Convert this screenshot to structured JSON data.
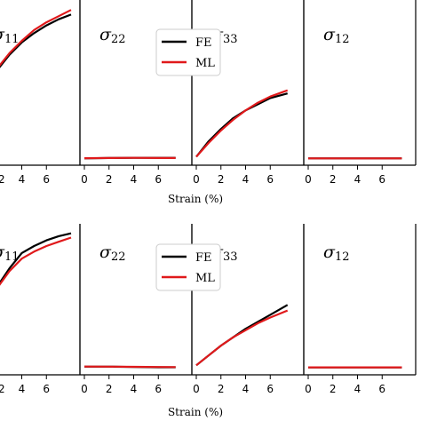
{
  "colors": {
    "fe": "#000000",
    "ml": "#e0191b",
    "axis": "#000000"
  },
  "chart_data": [
    {
      "row": "top",
      "type": "line",
      "xlabel": "Strain (%)",
      "legend": {
        "entries": [
          "FE",
          "ML"
        ],
        "placement": "upper-left of third panel"
      },
      "panels": [
        {
          "title_sym": "σ",
          "title_sub": "11",
          "xlim": [
            0,
            8
          ],
          "ylim": [
            0,
            1
          ],
          "series": [
            {
              "name": "FE",
              "x": [
                -1,
                0,
                1,
                2,
                3,
                4,
                5,
                6,
                7,
                8
              ],
              "y": [
                0.12,
                0.33,
                0.47,
                0.58,
                0.68,
                0.76,
                0.82,
                0.87,
                0.91,
                0.94
              ]
            },
            {
              "name": "ML",
              "x": [
                -1,
                0,
                1,
                2,
                3,
                4,
                5,
                6,
                7,
                8
              ],
              "y": [
                0.12,
                0.33,
                0.48,
                0.59,
                0.69,
                0.77,
                0.84,
                0.89,
                0.93,
                0.97
              ]
            }
          ]
        },
        {
          "title_sym": "σ",
          "title_sub": "22",
          "xlim": [
            0,
            8
          ],
          "ylim": [
            0,
            1
          ],
          "x_ticks": [
            "0",
            "2",
            "4",
            "6"
          ],
          "series": [
            {
              "name": "FE",
              "x": [
                0,
                2,
                4,
                6,
                7.4
              ],
              "y": [
                0.01,
                0.012,
                0.013,
                0.013,
                0.013
              ]
            },
            {
              "name": "ML",
              "x": [
                0,
                2,
                4,
                6,
                7.4
              ],
              "y": [
                0.011,
                0.012,
                0.013,
                0.012,
                0.012
              ]
            }
          ]
        },
        {
          "title_sym": "σ",
          "title_sub": "33",
          "xlim": [
            0,
            8
          ],
          "ylim": [
            0,
            1
          ],
          "x_ticks": [
            "0",
            "2",
            "4",
            "6"
          ],
          "series": [
            {
              "name": "FE",
              "x": [
                0,
                1,
                2,
                3,
                4,
                5,
                6,
                7.4
              ],
              "y": [
                0.02,
                0.12,
                0.2,
                0.27,
                0.32,
                0.36,
                0.4,
                0.43
              ]
            },
            {
              "name": "ML",
              "x": [
                0,
                1,
                2,
                3,
                4,
                5,
                6,
                7.4
              ],
              "y": [
                0.02,
                0.11,
                0.19,
                0.26,
                0.32,
                0.37,
                0.41,
                0.45
              ]
            }
          ]
        },
        {
          "title_sym": "σ",
          "title_sub": "12",
          "xlim": [
            0,
            8
          ],
          "ylim": [
            0,
            1
          ],
          "x_ticks": [
            "0",
            "2",
            "4",
            "6"
          ],
          "series": [
            {
              "name": "FE",
              "x": [
                0,
                7.6
              ],
              "y": [
                0.01,
                0.01
              ]
            },
            {
              "name": "ML",
              "x": [
                0,
                7.6
              ],
              "y": [
                0.01,
                0.01
              ]
            }
          ]
        }
      ]
    },
    {
      "row": "bottom",
      "type": "line",
      "xlabel": "Strain (%)",
      "legend": {
        "entries": [
          "FE",
          "ML"
        ],
        "placement": "upper-left of third panel"
      },
      "panels": [
        {
          "title_sym": "σ",
          "title_sub": "11",
          "xlim": [
            0,
            8
          ],
          "ylim": [
            0,
            1
          ],
          "series": [
            {
              "name": "FE",
              "x": [
                -1,
                0,
                1,
                2,
                3,
                4,
                5,
                6,
                7,
                8
              ],
              "y": [
                0.18,
                0.33,
                0.46,
                0.59,
                0.72,
                0.83,
                0.88,
                0.92,
                0.95,
                0.97
              ]
            },
            {
              "name": "ML",
              "x": [
                -1,
                0,
                1,
                2,
                3,
                4,
                5,
                6,
                7,
                8
              ],
              "y": [
                0.18,
                0.33,
                0.46,
                0.58,
                0.7,
                0.79,
                0.84,
                0.88,
                0.91,
                0.94
              ]
            }
          ]
        },
        {
          "title_sym": "σ",
          "title_sub": "22",
          "xlim": [
            0,
            8
          ],
          "ylim": [
            0,
            1
          ],
          "x_ticks": [
            "0",
            "2",
            "4",
            "6"
          ],
          "series": [
            {
              "name": "FE",
              "x": [
                0,
                2,
                4,
                6,
                7.4
              ],
              "y": [
                0.02,
                0.02,
                0.018,
                0.016,
                0.016
              ]
            },
            {
              "name": "ML",
              "x": [
                0,
                2,
                4,
                6,
                7.4
              ],
              "y": [
                0.021,
                0.02,
                0.019,
                0.018,
                0.017
              ]
            }
          ]
        },
        {
          "title_sym": "σ",
          "title_sub": "33",
          "xlim": [
            0,
            8
          ],
          "ylim": [
            0,
            1
          ],
          "x_ticks": [
            "0",
            "2",
            "4",
            "6"
          ],
          "series": [
            {
              "name": "FE",
              "x": [
                0,
                1,
                2,
                3,
                4,
                5,
                6,
                7.4
              ],
              "y": [
                0.03,
                0.1,
                0.17,
                0.23,
                0.29,
                0.34,
                0.39,
                0.46
              ]
            },
            {
              "name": "ML",
              "x": [
                0,
                1,
                2,
                3,
                4,
                5,
                6,
                7.4
              ],
              "y": [
                0.03,
                0.1,
                0.17,
                0.23,
                0.28,
                0.33,
                0.37,
                0.42
              ]
            }
          ]
        },
        {
          "title_sym": "σ",
          "title_sub": "12",
          "xlim": [
            0,
            8
          ],
          "ylim": [
            0,
            1
          ],
          "x_ticks": [
            "0",
            "2",
            "4",
            "6"
          ],
          "series": [
            {
              "name": "FE",
              "x": [
                0,
                7.6
              ],
              "y": [
                0.015,
                0.015
              ]
            },
            {
              "name": "ML",
              "x": [
                0,
                7.6
              ],
              "y": [
                0.015,
                0.015
              ]
            }
          ]
        }
      ]
    }
  ],
  "panel0_x_ticks": [
    "2",
    "4",
    "6"
  ]
}
